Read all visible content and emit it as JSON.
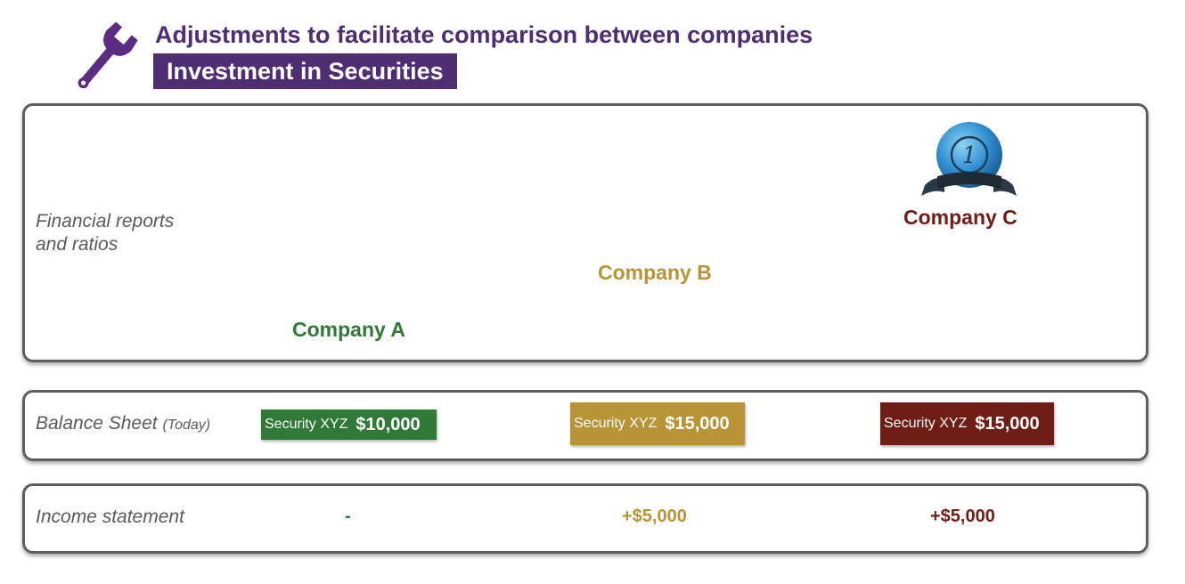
{
  "header": {
    "title": "Adjustments to facilitate comparison between companies",
    "subtitle": "Investment in Securities",
    "icon": "wrench-icon"
  },
  "rows": {
    "financial_reports": [
      "Financial reports",
      "and ratios"
    ],
    "balance_sheet": {
      "label": "Balance Sheet",
      "qualifier": "(Today)"
    },
    "income_statement": "Income statement"
  },
  "companies": [
    {
      "name": "Company A",
      "color": "#2f7a36",
      "security_name": "Security XYZ",
      "security_value": "$10,000",
      "income": "-"
    },
    {
      "name": "Company B",
      "color": "#b89436",
      "security_name": "Security XYZ",
      "security_value": "$15,000",
      "income": "+$5,000"
    },
    {
      "name": "Company C",
      "color": "#6f1d15",
      "security_name": "Security XYZ",
      "security_value": "$15,000",
      "income": "+$5,000",
      "badge": {
        "icon": "medal-icon",
        "number": "1"
      }
    }
  ],
  "colors": {
    "accent": "#4f2d73"
  }
}
